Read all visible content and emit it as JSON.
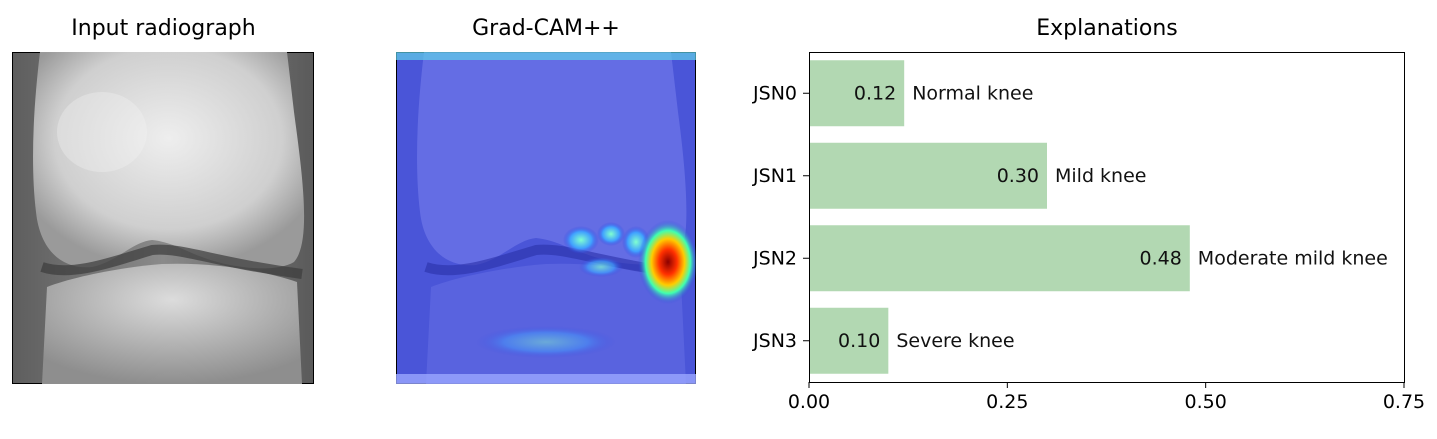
{
  "panels": {
    "input_title": "Input radiograph",
    "gradcam_title": "Grad-CAM++"
  },
  "chart_data": {
    "type": "bar",
    "orientation": "horizontal",
    "title": "Explanations",
    "xlabel": "",
    "ylabel": "",
    "categories": [
      "JSN0",
      "JSN1",
      "JSN2",
      "JSN3"
    ],
    "values": [
      0.12,
      0.3,
      0.48,
      0.1
    ],
    "value_labels": [
      "0.12",
      "0.30",
      "0.48",
      "0.10"
    ],
    "bar_annotations": [
      "Normal knee",
      "Mild knee",
      "Moderate mild knee",
      "Severe knee"
    ],
    "xlim": [
      0.0,
      0.75
    ],
    "xticks": [
      0.0,
      0.25,
      0.5,
      0.75
    ],
    "xtick_labels": [
      "0.00",
      "0.25",
      "0.50",
      "0.75"
    ],
    "grid": false,
    "bar_color": "#b2d8b2"
  }
}
